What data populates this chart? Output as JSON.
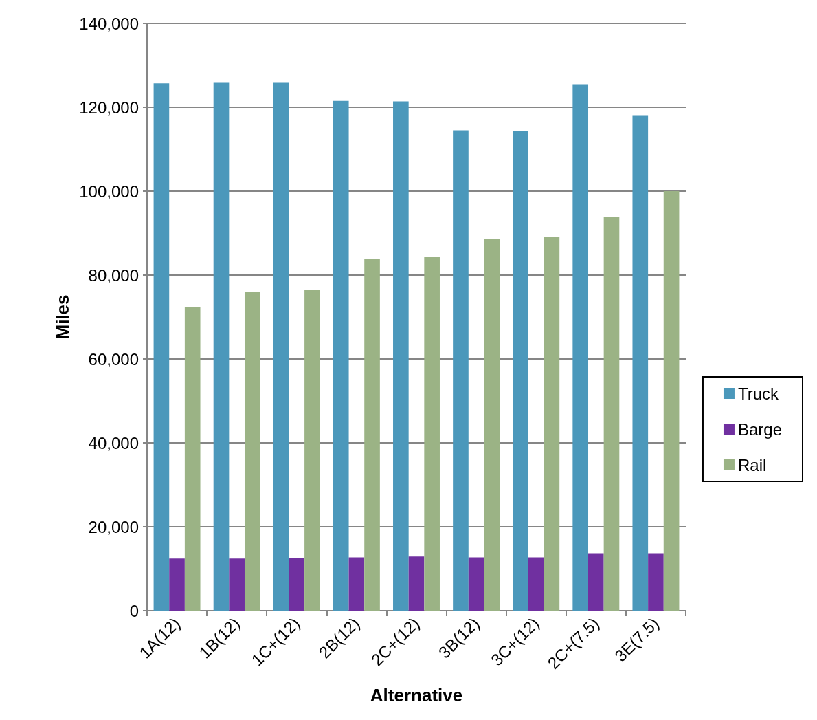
{
  "chart_data": {
    "type": "bar",
    "xlabel": "Alternative",
    "ylabel": "Miles",
    "categories": [
      "1A(12)",
      "1B(12)",
      "1C+(12)",
      "2B(12)",
      "2C+(12)",
      "3B(12)",
      "3C+(12)",
      "2C+(7.5)",
      "3E(7.5)"
    ],
    "series": [
      {
        "name": "Truck",
        "color": "#4b98bb",
        "values": [
          125700,
          126000,
          126000,
          121500,
          121400,
          114500,
          114300,
          125500,
          118100
        ]
      },
      {
        "name": "Barge",
        "color": "#7030a0",
        "values": [
          12400,
          12400,
          12500,
          12700,
          12900,
          12700,
          12700,
          13700,
          13700
        ]
      },
      {
        "name": "Rail",
        "color": "#9bb385",
        "values": [
          72300,
          75900,
          76500,
          83900,
          84400,
          88600,
          89200,
          93900,
          100000
        ]
      }
    ],
    "ylim": [
      0,
      140000
    ],
    "yticks": [
      0,
      {
        "value": 20000,
        "label": "20,000"
      },
      {
        "value": 40000,
        "label": "40,000"
      },
      {
        "value": 60000,
        "label": "60,000"
      },
      {
        "value": 80000,
        "label": "80,000"
      },
      {
        "value": 100000,
        "label": "100,000"
      },
      {
        "value": 120000,
        "label": "120,000"
      },
      {
        "value": 140000,
        "label": "140,000"
      }
    ],
    "grid": "y",
    "legend": "right"
  }
}
